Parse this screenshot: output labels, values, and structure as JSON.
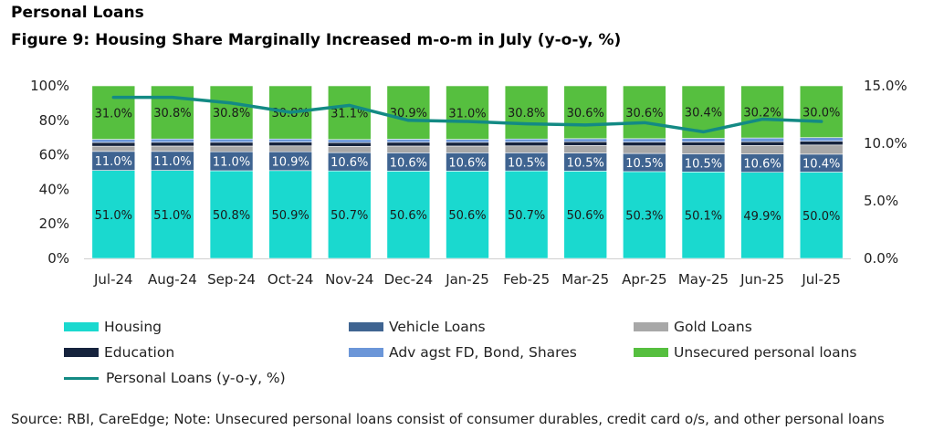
{
  "heading": "Personal Loans",
  "figure_title": "Figure 9: Housing Share Marginally Increased m-o-m in July (y-o-y, %)",
  "source_note": "Source: RBI, CareEdge; Note: Unsecured personal loans consist of consumer durables, credit card o/s, and other personal loans",
  "chart_data": {
    "type": "bar",
    "stacked": true,
    "title": "Figure 9: Housing Share Marginally Increased m-o-m in July (y-o-y, %)",
    "categories": [
      "Jul-24",
      "Aug-24",
      "Sep-24",
      "Oct-24",
      "Nov-24",
      "Dec-24",
      "Jan-25",
      "Feb-25",
      "Mar-25",
      "Apr-25",
      "May-25",
      "Jun-25",
      "Jul-25"
    ],
    "y_left": {
      "range": [
        0,
        100
      ],
      "ticks": [
        0,
        20,
        40,
        60,
        80,
        100
      ],
      "tick_labels": [
        "0%",
        "20%",
        "40%",
        "60%",
        "80%",
        "100%"
      ]
    },
    "y_right": {
      "range": [
        0,
        15
      ],
      "ticks": [
        0,
        5,
        10,
        15
      ],
      "tick_labels": [
        "0.0%",
        "5.0%",
        "10.0%",
        "15.0%"
      ]
    },
    "series": [
      {
        "name": "Housing",
        "color": "#1ad9cf",
        "labels_shown": true,
        "values": [
          51.0,
          51.0,
          50.8,
          50.9,
          50.7,
          50.6,
          50.6,
          50.7,
          50.6,
          50.3,
          50.1,
          49.9,
          50.0
        ]
      },
      {
        "name": "Vehicle Loans",
        "color": "#3f6491",
        "labels_shown": true,
        "values": [
          11.0,
          11.0,
          11.0,
          10.9,
          10.6,
          10.6,
          10.6,
          10.5,
          10.5,
          10.5,
          10.5,
          10.6,
          10.4
        ]
      },
      {
        "name": "Gold Loans",
        "color": "#a8a8a8",
        "labels_shown": false,
        "values": [
          3.0,
          3.1,
          3.3,
          3.4,
          3.6,
          3.9,
          3.9,
          4.0,
          4.3,
          4.4,
          4.7,
          4.9,
          5.3
        ]
      },
      {
        "name": "Education",
        "color": "#16233d",
        "labels_shown": false,
        "values": [
          2.2,
          2.2,
          2.2,
          2.2,
          2.2,
          2.2,
          2.2,
          2.2,
          2.2,
          2.2,
          2.2,
          2.2,
          2.2
        ]
      },
      {
        "name": "Adv agst FD, Bond, Shares",
        "color": "#6b96d8",
        "labels_shown": false,
        "values": [
          1.8,
          1.9,
          1.9,
          1.8,
          1.8,
          1.8,
          1.7,
          1.8,
          1.8,
          2.0,
          2.1,
          2.2,
          2.1
        ]
      },
      {
        "name": "Unsecured personal loans",
        "color": "#56bf3f",
        "labels_shown": true,
        "values": [
          31.0,
          30.8,
          30.8,
          30.8,
          31.1,
          30.9,
          31.0,
          30.8,
          30.6,
          30.6,
          30.4,
          30.2,
          30.0
        ]
      }
    ],
    "line": {
      "name": "Personal Loans (y-o-y, %)",
      "color": "#138a84",
      "axis": "right",
      "values": [
        14.0,
        14.0,
        13.5,
        12.7,
        13.3,
        12.0,
        11.9,
        11.7,
        11.6,
        11.8,
        11.0,
        12.1,
        11.9
      ]
    },
    "legend_position": "bottom"
  }
}
